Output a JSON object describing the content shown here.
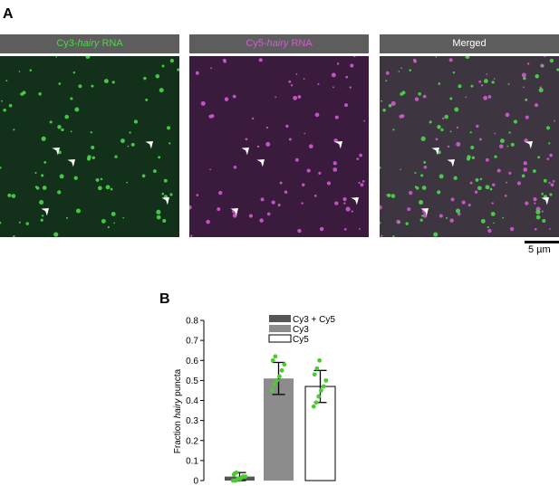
{
  "panel_a": {
    "letter": "A",
    "tiles": [
      {
        "title_prefix": "Cy3-",
        "title_italic": "hairy",
        "title_suffix": " RNA"
      },
      {
        "title_prefix": "Cy5-",
        "title_italic": "hairy",
        "title_suffix": " RNA"
      },
      {
        "title_prefix": "Merged",
        "title_italic": "",
        "title_suffix": ""
      }
    ],
    "scale_label": "5 µm"
  },
  "panel_b": {
    "letter": "B",
    "ylabel_prefix": "Fraction ",
    "ylabel_italic": "hairy",
    "ylabel_suffix": " puncta"
  },
  "chart_data": {
    "type": "bar",
    "categories": [
      "Cy3 + Cy5",
      "Cy3",
      "Cy5"
    ],
    "values": [
      0.02,
      0.51,
      0.47
    ],
    "error": [
      0.02,
      0.08,
      0.08
    ],
    "points": [
      [
        0.0,
        0.0,
        0.01,
        0.01,
        0.02,
        0.02,
        0.03,
        0.04
      ],
      [
        0.45,
        0.48,
        0.5,
        0.52,
        0.55,
        0.58,
        0.6,
        0.62
      ],
      [
        0.37,
        0.39,
        0.42,
        0.45,
        0.47,
        0.5,
        0.53,
        0.56,
        0.6
      ]
    ],
    "legend": [
      "Cy3 + Cy5",
      "Cy3",
      "Cy5"
    ],
    "legend_position": "top",
    "ylim": [
      0,
      0.8
    ],
    "yticks": [
      "0",
      "0.1",
      "0.2",
      "0.3",
      "0.4",
      "0.5",
      "0.6",
      "0.7",
      "0.8"
    ],
    "colors": {
      "bar1": "#555555",
      "bar2": "#8c8c8c",
      "bar3": "#ffffff",
      "points": "#4ccc30"
    }
  },
  "colors": {
    "header_bg": "#5d5d5d",
    "green": "#4ad84a",
    "magenta": "#d35ad3"
  }
}
